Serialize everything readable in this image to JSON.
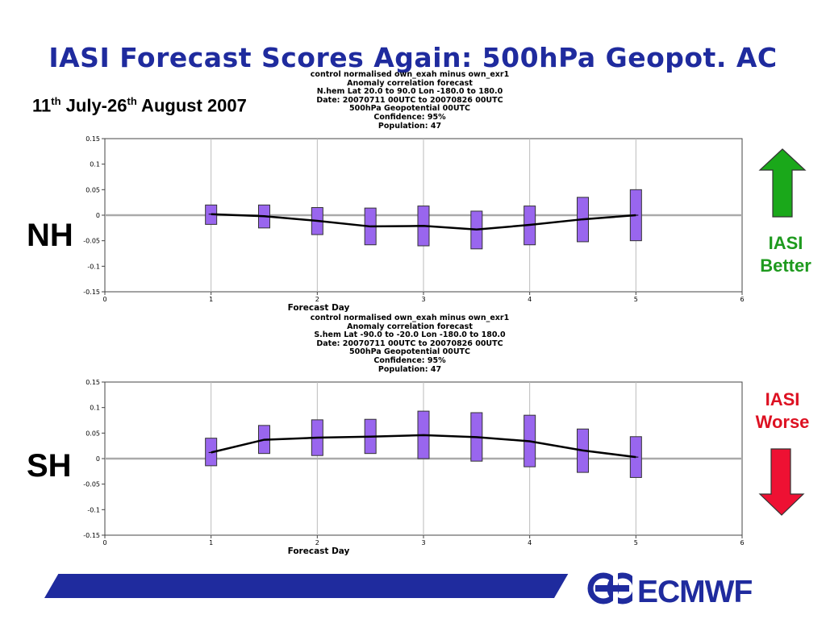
{
  "slide": {
    "title": "IASI Forecast Scores Again: 500hPa Geopot. AC",
    "date_day1": "11",
    "date_sup1": "th",
    "date_mid": " July-26",
    "date_sup2": "th",
    "date_end": " August 2007",
    "nh_label": "NH",
    "sh_label": "SH",
    "better_line1": "IASI",
    "better_line2": "Better",
    "worse_line1": "IASI",
    "worse_line2": "Worse",
    "logo_text": "ECMWF"
  },
  "colors": {
    "title": "#1f2b9e",
    "box_fill": "#9966ee",
    "better_arrow": "#1aa81a",
    "better_text": "#1e9a1e",
    "worse_arrow": "#ee1133",
    "worse_text": "#dd1122",
    "footer_bar": "#1f2b9e"
  },
  "chart_data": [
    {
      "type": "line",
      "header": [
        "control normalised  own_exah minus own_exr1",
        "Anomaly correlation forecast",
        "N.hem  Lat  20.0 to 90.0 Lon  -180.0 to  180.0",
        "Date: 20070711 00UTC to 20070826 00UTC",
        "500hPa Geopotential 00UTC",
        "Confidence: 95%",
        "Population: 47"
      ],
      "xlabel": "Forecast Day",
      "ylabel": "",
      "xlim": [
        0,
        6
      ],
      "ylim": [
        -0.15,
        0.15
      ],
      "xticks": [
        "0",
        "1",
        "2",
        "3",
        "4",
        "5",
        "6"
      ],
      "yticks": [
        "0.15",
        "0.1",
        "0.05",
        "0",
        "-0.05",
        "-0.1",
        "-0.15"
      ],
      "grid": true,
      "x": [
        1,
        1.5,
        2,
        2.5,
        3,
        3.5,
        4,
        4.5,
        5
      ],
      "values": [
        0.002,
        -0.002,
        -0.011,
        -0.022,
        -0.021,
        -0.028,
        -0.019,
        -0.008,
        0.0
      ],
      "ci_low": [
        -0.018,
        -0.025,
        -0.038,
        -0.058,
        -0.06,
        -0.066,
        -0.058,
        -0.052,
        -0.05
      ],
      "ci_high": [
        0.02,
        0.02,
        0.015,
        0.014,
        0.018,
        0.008,
        0.018,
        0.035,
        0.05
      ]
    },
    {
      "type": "line",
      "header": [
        "control normalised  own_exah minus own_exr1",
        "Anomaly correlation forecast",
        "S.hem  Lat  -90.0 to -20.0 Lon  -180.0 to  180.0",
        "Date: 20070711 00UTC to 20070826 00UTC",
        "500hPa Geopotential 00UTC",
        "Confidence: 95%",
        "Population: 47"
      ],
      "xlabel": "Forecast Day",
      "ylabel": "",
      "xlim": [
        0,
        6
      ],
      "ylim": [
        -0.15,
        0.15
      ],
      "xticks": [
        "0",
        "1",
        "2",
        "3",
        "4",
        "5",
        "6"
      ],
      "yticks": [
        "0.15",
        "0.1",
        "0.05",
        "0",
        "-0.05",
        "-0.1",
        "-0.15"
      ],
      "grid": true,
      "x": [
        1,
        1.5,
        2,
        2.5,
        3,
        3.5,
        4,
        4.5,
        5
      ],
      "values": [
        0.012,
        0.037,
        0.041,
        0.043,
        0.046,
        0.042,
        0.034,
        0.016,
        0.003
      ],
      "ci_low": [
        -0.014,
        0.01,
        0.006,
        0.01,
        0.0,
        -0.005,
        -0.016,
        -0.027,
        -0.037
      ],
      "ci_high": [
        0.04,
        0.065,
        0.076,
        0.077,
        0.093,
        0.09,
        0.085,
        0.058,
        0.043
      ]
    }
  ]
}
